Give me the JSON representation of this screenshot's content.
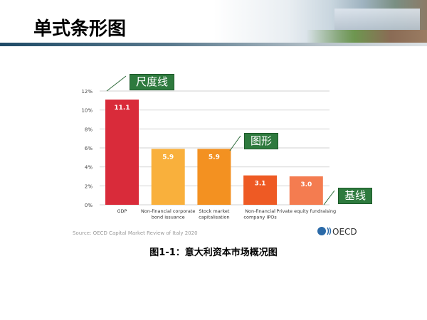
{
  "header": {
    "title": "单式条形图"
  },
  "callouts": {
    "scale_line": "尺度线",
    "shape": "图形",
    "baseline": "基线"
  },
  "caption": "图1-1：意大利资本市场概况图",
  "chart_data": {
    "type": "bar",
    "categories": [
      [
        "GDP"
      ],
      [
        "Non-financial corporate",
        "bond issuance"
      ],
      [
        "Stock market",
        "capitalisation"
      ],
      [
        "Non-financial",
        "company IPOs"
      ],
      [
        "Private equity fundraising"
      ]
    ],
    "values": [
      11.1,
      5.9,
      5.9,
      3.1,
      3.0
    ],
    "value_labels": [
      "11.1",
      "5.9",
      "5.9",
      "3.1",
      "3.0"
    ],
    "colors": [
      "#d92b3a",
      "#f9b03c",
      "#f39121",
      "#ee5a24",
      "#f47c50"
    ],
    "yticks": [
      "0%",
      "2%",
      "4%",
      "6%",
      "8%",
      "10%",
      "12%"
    ],
    "ylim": [
      0,
      12
    ],
    "grid": true,
    "source": "Source: OECD Capital Market Review of Italy 2020",
    "logo": "OECD"
  }
}
